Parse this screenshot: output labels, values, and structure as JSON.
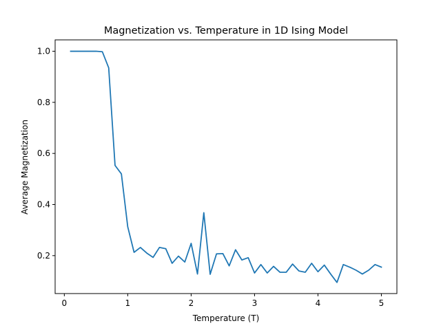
{
  "chart_data": {
    "type": "line",
    "title": "Magnetization vs. Temperature in 1D Ising Model",
    "xlabel": "Temperature (T)",
    "ylabel": "Average Magnetization",
    "xlim": [
      -0.145,
      5.245
    ],
    "ylim": [
      0.0515,
      1.0445
    ],
    "xticks": [
      0,
      1,
      2,
      3,
      4,
      5
    ],
    "xtick_labels": [
      "0",
      "1",
      "2",
      "3",
      "4",
      "5"
    ],
    "yticks": [
      0.2,
      0.4,
      0.6,
      0.8,
      1.0
    ],
    "ytick_labels": [
      "0.2",
      "0.4",
      "0.6",
      "0.8",
      "1.0"
    ],
    "grid": false,
    "color": "#1f77b4",
    "series": [
      {
        "x": [
          0.1,
          0.2,
          0.3,
          0.4,
          0.5,
          0.6,
          0.7,
          0.8,
          0.9,
          1.0,
          1.1,
          1.2,
          1.3,
          1.4,
          1.5,
          1.6,
          1.7,
          1.8,
          1.9,
          2.0,
          2.1,
          2.2,
          2.3,
          2.4,
          2.5,
          2.6,
          2.7,
          2.8,
          2.9,
          3.0,
          3.1,
          3.2,
          3.3,
          3.4,
          3.5,
          3.6,
          3.7,
          3.8,
          3.9,
          4.0,
          4.1,
          4.2,
          4.3,
          4.4,
          4.5,
          4.6,
          4.7,
          4.8,
          4.9,
          5.0
        ],
        "y": [
          1.0,
          1.0,
          1.0,
          1.0,
          1.0,
          0.998,
          0.935,
          0.553,
          0.52,
          0.313,
          0.213,
          0.232,
          0.21,
          0.193,
          0.232,
          0.227,
          0.17,
          0.198,
          0.175,
          0.248,
          0.128,
          0.368,
          0.127,
          0.207,
          0.208,
          0.16,
          0.223,
          0.183,
          0.192,
          0.132,
          0.165,
          0.132,
          0.158,
          0.135,
          0.135,
          0.167,
          0.14,
          0.135,
          0.17,
          0.137,
          0.163,
          0.128,
          0.095,
          0.165,
          0.155,
          0.143,
          0.128,
          0.143,
          0.165,
          0.155
        ]
      }
    ]
  }
}
